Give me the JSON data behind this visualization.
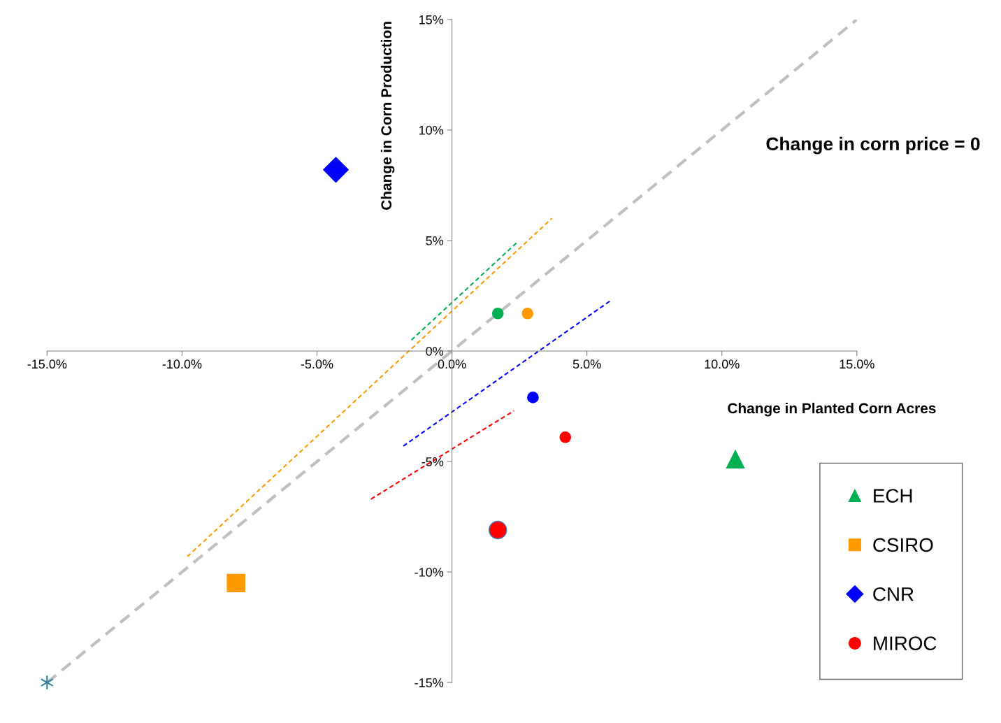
{
  "chart_data": {
    "type": "scatter",
    "xlabel": "Change in Planted Corn Acres",
    "ylabel": "Change in Corn Production",
    "annotations": [
      "Change in corn price = 0"
    ],
    "xlim": [
      -15,
      15
    ],
    "ylim": [
      -15,
      15
    ],
    "xticks": [
      {
        "value": -15,
        "label": "-15.0%"
      },
      {
        "value": -10,
        "label": "-10.0%"
      },
      {
        "value": -5,
        "label": "-5.0%"
      },
      {
        "value": 0,
        "label": "0.0%"
      },
      {
        "value": 5,
        "label": "5.0%"
      },
      {
        "value": 10,
        "label": "10.0%"
      },
      {
        "value": 15,
        "label": "15.0%"
      }
    ],
    "yticks": [
      {
        "value": -15,
        "label": "-15%"
      },
      {
        "value": -10,
        "label": "-10%"
      },
      {
        "value": -5,
        "label": "-5%"
      },
      {
        "value": 0,
        "label": "0%"
      },
      {
        "value": 5,
        "label": "5%"
      },
      {
        "value": 10,
        "label": "10%"
      },
      {
        "value": 15,
        "label": "15%"
      }
    ],
    "grid": false,
    "legend": "bottom right",
    "series": [
      {
        "type": "line",
        "color": "#bfbfbf",
        "line_style": "dashed",
        "x": [
          -15,
          15
        ],
        "values": [
          -15,
          15
        ]
      },
      {
        "type": "line",
        "color": "#00b050",
        "line_style": "dashed",
        "x": [
          -1.5,
          2.4
        ],
        "values": [
          0.5,
          4.9
        ]
      },
      {
        "type": "line",
        "color": "#ff9900",
        "line_style": "dashed",
        "x": [
          -9.8,
          3.7
        ],
        "values": [
          -9.3,
          6.0
        ]
      },
      {
        "type": "line",
        "color": "#0000ff",
        "line_style": "dashed",
        "x": [
          -1.8,
          5.9
        ],
        "values": [
          -4.3,
          2.3
        ]
      },
      {
        "type": "line",
        "color": "#ff0000",
        "line_style": "dashed",
        "x": [
          -3.0,
          2.3
        ],
        "values": [
          -6.7,
          -2.7
        ]
      },
      {
        "type": "scatter",
        "name": "ECH",
        "color": "#00b050",
        "marker": "triangle",
        "x": [
          10.5
        ],
        "values": [
          -4.9
        ]
      },
      {
        "type": "scatter",
        "name": "CSIRO",
        "color": "#ff9900",
        "marker": "square",
        "x": [
          -8.0
        ],
        "values": [
          -10.5
        ]
      },
      {
        "type": "scatter",
        "name": "CNR",
        "color": "#0000ff",
        "marker": "diamond",
        "x": [
          -4.3
        ],
        "values": [
          8.2
        ]
      },
      {
        "type": "scatter",
        "name": "MIROC",
        "color": "#ff0000",
        "marker": "circle",
        "x": [
          1.7
        ],
        "values": [
          -8.1
        ]
      },
      {
        "type": "scatter",
        "color": "#00b050",
        "marker": "circle",
        "x": [
          1.7
        ],
        "values": [
          1.7
        ]
      },
      {
        "type": "scatter",
        "color": "#ff9900",
        "marker": "circle",
        "x": [
          2.8
        ],
        "values": [
          1.7
        ]
      },
      {
        "type": "scatter",
        "color": "#0000ff",
        "marker": "circle",
        "x": [
          3.0
        ],
        "values": [
          -2.1
        ]
      },
      {
        "type": "scatter",
        "color": "#ff0000",
        "marker": "circle",
        "x": [
          4.2
        ],
        "values": [
          -3.9
        ]
      },
      {
        "type": "scatter",
        "color": "#31859c",
        "marker": "cross",
        "x": [
          -15
        ],
        "values": [
          -15
        ]
      }
    ]
  }
}
